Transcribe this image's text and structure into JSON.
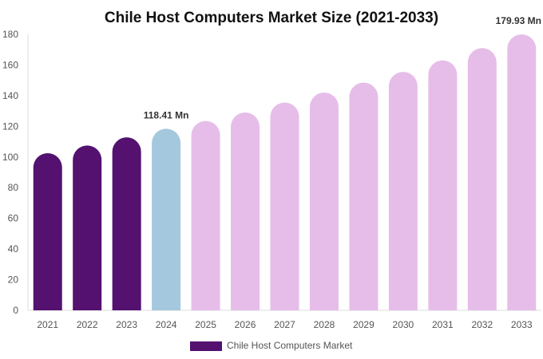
{
  "chart_data": {
    "type": "bar",
    "title": "Chile Host Computers Market Size (2021-2033)",
    "categories": [
      "2021",
      "2022",
      "2023",
      "2024",
      "2025",
      "2026",
      "2027",
      "2028",
      "2029",
      "2030",
      "2031",
      "2032",
      "2033"
    ],
    "series": [
      {
        "name": "Chile Host Computers Market",
        "values": [
          102.5,
          107.5,
          112.8,
          118.41,
          123.5,
          129.0,
          135.5,
          142.0,
          148.5,
          155.5,
          163.0,
          171.0,
          179.93
        ]
      }
    ],
    "bar_colors": [
      "#541170",
      "#541170",
      "#541170",
      "#a4c8dd",
      "#e6bde9",
      "#e6bde9",
      "#e6bde9",
      "#e6bde9",
      "#e6bde9",
      "#e6bde9",
      "#e6bde9",
      "#e6bde9",
      "#e6bde9"
    ],
    "data_labels": [
      {
        "index": 3,
        "text": "118.41 Mn"
      },
      {
        "index": 12,
        "text": "179.93 Mn"
      }
    ],
    "yticks": [
      0,
      20,
      40,
      60,
      80,
      100,
      120,
      140,
      160,
      180
    ],
    "ylim": [
      0,
      180
    ],
    "xlabel": "",
    "ylabel": "",
    "grid": false,
    "legend": {
      "position": "bottom",
      "color": "#541170"
    }
  }
}
